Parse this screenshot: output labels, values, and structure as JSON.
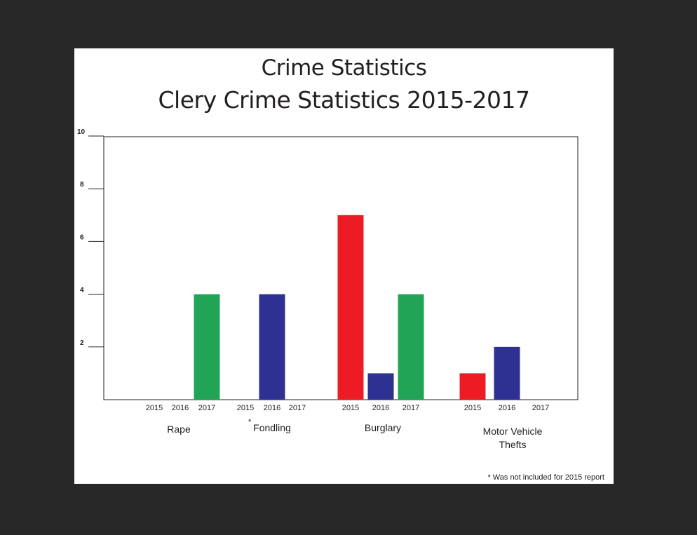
{
  "chart_data": {
    "type": "bar",
    "title": "Crime Statistics",
    "subtitle": "Clery Crime Statistics 2015-2017",
    "ylim": [
      0,
      10
    ],
    "yticks": [
      10,
      8,
      6,
      4,
      2
    ],
    "grid": false,
    "groups": [
      {
        "label": "Rape",
        "marker": "",
        "bars": [
          {
            "year": "2015",
            "value": 0,
            "color": "#ed1c24"
          },
          {
            "year": "2016",
            "value": 0,
            "color": "#2e3192"
          },
          {
            "year": "2017",
            "value": 4,
            "color": "#21a456"
          }
        ]
      },
      {
        "label": "Fondling",
        "marker": "*",
        "bars": [
          {
            "year": "2015",
            "value": 0,
            "color": "#ed1c24"
          },
          {
            "year": "2016",
            "value": 4,
            "color": "#2e3192"
          },
          {
            "year": "2017",
            "value": 0,
            "color": "#21a456"
          }
        ]
      },
      {
        "label": "Burglary",
        "marker": "",
        "bars": [
          {
            "year": "2015",
            "value": 7,
            "color": "#ed1c24"
          },
          {
            "year": "2016",
            "value": 1,
            "color": "#2e3192"
          },
          {
            "year": "2017",
            "value": 4,
            "color": "#21a456"
          }
        ]
      },
      {
        "label": "Motor Vehicle Thefts",
        "marker": "",
        "bars": [
          {
            "year": "2015",
            "value": 1,
            "color": "#ed1c24"
          },
          {
            "year": "2016",
            "value": 2,
            "color": "#2e3192"
          },
          {
            "year": "2017",
            "value": 0,
            "color": "#21a456"
          }
        ]
      }
    ],
    "footnote": "* Was not included for 2015 report"
  }
}
